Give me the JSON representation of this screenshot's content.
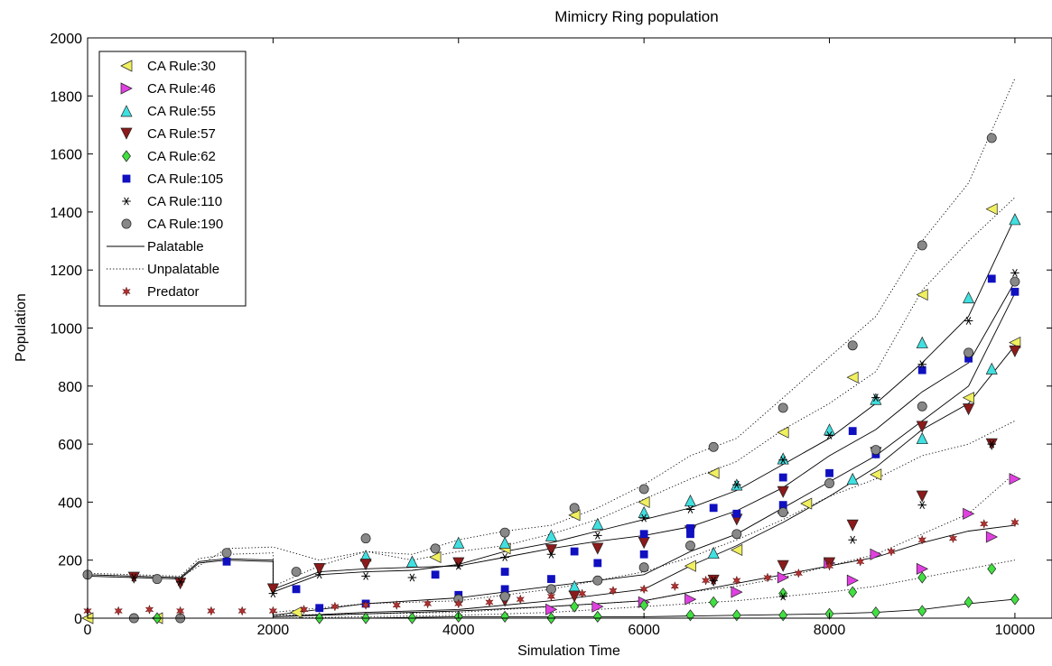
{
  "chart_data": {
    "type": "scatter",
    "title": "Mimicry Ring population",
    "xlabel": "Simulation Time",
    "ylabel": "Population",
    "xlim": [
      0,
      10400
    ],
    "ylim": [
      0,
      2000
    ],
    "xticks": [
      0,
      2000,
      4000,
      6000,
      8000,
      10000
    ],
    "yticks": [
      0,
      200,
      400,
      600,
      800,
      1000,
      1200,
      1400,
      1600,
      1800,
      2000
    ],
    "grid": false,
    "legend_position": "top-left",
    "line_styles": [
      {
        "name": "Palatable",
        "dash": "solid"
      },
      {
        "name": "Unpalatable",
        "dash": "dotted"
      }
    ],
    "series": [
      {
        "name": "CA Rule:30",
        "marker": "triangle-left",
        "color": "#f0f060",
        "x": [
          0,
          750,
          2250,
          3750,
          4500,
          5250,
          6000,
          6500,
          6750,
          7000,
          7500,
          7750,
          8250,
          8500,
          9000,
          9500,
          9750,
          10000
        ],
        "y": [
          0,
          0,
          20,
          210,
          240,
          355,
          400,
          180,
          500,
          235,
          640,
          395,
          830,
          495,
          1115,
          760,
          1410,
          950
        ]
      },
      {
        "name": "CA Rule:46",
        "marker": "triangle-right",
        "color": "#e040e0",
        "x": [
          5000,
          5500,
          6000,
          6500,
          7000,
          7500,
          8000,
          8250,
          8500,
          9000,
          9500,
          9750,
          10000
        ],
        "y": [
          30,
          40,
          55,
          65,
          90,
          140,
          190,
          130,
          220,
          170,
          360,
          280,
          480
        ]
      },
      {
        "name": "CA Rule:55",
        "marker": "triangle-up",
        "color": "#40e0e0",
        "x": [
          3000,
          3500,
          4000,
          4500,
          5000,
          5250,
          5500,
          6000,
          6500,
          6750,
          7000,
          7500,
          7500,
          8000,
          8250,
          8500,
          9000,
          9000,
          9500,
          9750,
          10000
        ],
        "y": [
          215,
          195,
          260,
          260,
          285,
          110,
          325,
          365,
          405,
          225,
          460,
          550,
          380,
          650,
          480,
          755,
          950,
          620,
          1105,
          860,
          1375
        ]
      },
      {
        "name": "CA Rule:57",
        "marker": "triangle-down",
        "color": "#8b1a1a",
        "x": [
          500,
          1000,
          2000,
          2500,
          3000,
          4000,
          4500,
          5000,
          5250,
          5500,
          6000,
          6500,
          6750,
          7000,
          7500,
          7500,
          8000,
          8250,
          8500,
          9000,
          9000,
          9500,
          9750,
          10000
        ],
        "y": [
          140,
          120,
          100,
          170,
          185,
          190,
          60,
          235,
          75,
          240,
          260,
          300,
          130,
          340,
          435,
          180,
          190,
          320,
          570,
          660,
          420,
          720,
          600,
          920
        ]
      },
      {
        "name": "CA Rule:62",
        "marker": "diamond",
        "color": "#40e040",
        "x": [
          750,
          2500,
          3000,
          3500,
          4000,
          4500,
          5000,
          5250,
          5500,
          6000,
          6500,
          6750,
          7000,
          7500,
          7500,
          8000,
          8250,
          8500,
          9000,
          9000,
          9500,
          9750,
          10000
        ],
        "y": [
          0,
          0,
          0,
          0,
          5,
          5,
          0,
          40,
          5,
          45,
          10,
          55,
          10,
          85,
          10,
          15,
          90,
          20,
          140,
          25,
          55,
          170,
          65
        ]
      },
      {
        "name": "CA Rule:105",
        "marker": "square",
        "color": "#1010c0",
        "x": [
          1500,
          2250,
          2500,
          3000,
          3750,
          4000,
          4500,
          4500,
          5000,
          5250,
          5500,
          6000,
          6000,
          6500,
          6500,
          6750,
          7000,
          7500,
          7500,
          8000,
          8250,
          8500,
          9000,
          9500,
          9750,
          10000
        ],
        "y": [
          195,
          100,
          35,
          50,
          150,
          80,
          160,
          100,
          135,
          230,
          190,
          290,
          220,
          290,
          310,
          380,
          360,
          485,
          390,
          500,
          645,
          565,
          855,
          895,
          1170,
          1125
        ]
      },
      {
        "name": "CA Rule:110",
        "marker": "asterisk",
        "color": "#000000",
        "x": [
          500,
          1000,
          2000,
          2500,
          3000,
          3500,
          4000,
          4500,
          5000,
          5500,
          6000,
          6500,
          6750,
          7000,
          7500,
          7500,
          8000,
          8250,
          8500,
          9000,
          9000,
          9500,
          9750,
          10000
        ],
        "y": [
          140,
          125,
          85,
          150,
          145,
          140,
          180,
          210,
          220,
          285,
          345,
          375,
          130,
          460,
          545,
          75,
          630,
          270,
          760,
          875,
          390,
          1025,
          600,
          1190
        ]
      },
      {
        "name": "CA Rule:190",
        "marker": "circle",
        "color": "#888888",
        "x": [
          0,
          500,
          750,
          1000,
          1500,
          2250,
          3000,
          3750,
          4000,
          4500,
          4500,
          5000,
          5250,
          5500,
          6000,
          6000,
          6500,
          6750,
          7000,
          7500,
          7500,
          8000,
          8250,
          8500,
          9000,
          9000,
          9500,
          9750,
          10000
        ],
        "y": [
          150,
          0,
          135,
          0,
          225,
          160,
          275,
          240,
          65,
          295,
          75,
          100,
          380,
          130,
          445,
          175,
          250,
          590,
          290,
          725,
          365,
          465,
          940,
          580,
          1285,
          730,
          915,
          1655,
          1160
        ]
      },
      {
        "name": "Predator",
        "marker": "hexagram",
        "color": "#b03030",
        "x": [
          0,
          333,
          667,
          1000,
          1333,
          1667,
          2000,
          2333,
          2667,
          3000,
          3333,
          3667,
          4000,
          4333,
          4667,
          5000,
          5333,
          5667,
          6000,
          6333,
          6667,
          7000,
          7333,
          7667,
          8000,
          8333,
          8667,
          9000,
          9333,
          9667,
          10000
        ],
        "y": [
          25,
          25,
          30,
          25,
          25,
          25,
          25,
          30,
          40,
          45,
          45,
          50,
          50,
          55,
          65,
          75,
          85,
          95,
          100,
          110,
          130,
          130,
          140,
          155,
          180,
          195,
          230,
          270,
          275,
          325,
          330
        ]
      }
    ],
    "curves": [
      {
        "style": "solid",
        "x": [
          0,
          500,
          1000,
          1200,
          1500,
          2000,
          2000,
          2500,
          3000,
          3500,
          4000,
          4500,
          5000,
          5500,
          6000,
          6500,
          7000,
          7500,
          8000,
          8500,
          9000,
          9500,
          10000
        ],
        "y": [
          150,
          145,
          140,
          195,
          205,
          200,
          100,
          160,
          170,
          175,
          180,
          210,
          240,
          265,
          285,
          315,
          370,
          450,
          560,
          650,
          780,
          880,
          1160
        ]
      },
      {
        "style": "solid",
        "x": [
          0,
          500,
          1000,
          1200,
          1500,
          2000,
          2000,
          2500,
          3000,
          3500,
          4000,
          4500,
          5000,
          5500,
          6000,
          6500,
          7000,
          7500,
          8000,
          8500,
          9000,
          9500,
          10000
        ],
        "y": [
          145,
          140,
          135,
          190,
          200,
          195,
          90,
          150,
          160,
          165,
          185,
          230,
          260,
          300,
          340,
          380,
          440,
          530,
          620,
          740,
          880,
          1040,
          1380
        ]
      },
      {
        "style": "solid",
        "x": [
          2000,
          3000,
          4000,
          5000,
          6000,
          6500,
          7000,
          7500,
          8000,
          8500,
          9000,
          9500,
          10000
        ],
        "y": [
          10,
          50,
          70,
          110,
          150,
          230,
          290,
          380,
          470,
          560,
          680,
          800,
          1120
        ]
      },
      {
        "style": "solid",
        "x": [
          2000,
          3000,
          4000,
          5000,
          6000,
          6500,
          7000,
          7500,
          8000,
          8500,
          9000,
          9500,
          10000
        ],
        "y": [
          5,
          20,
          30,
          60,
          100,
          180,
          250,
          330,
          420,
          520,
          650,
          740,
          940
        ]
      },
      {
        "style": "solid",
        "x": [
          2000,
          3000,
          4000,
          5000,
          6000,
          6500,
          7000,
          7500,
          8000,
          8500,
          9000,
          9500,
          10000
        ],
        "y": [
          5,
          15,
          25,
          40,
          60,
          90,
          120,
          150,
          180,
          210,
          260,
          300,
          320
        ]
      },
      {
        "style": "solid",
        "x": [
          2000,
          3000,
          4000,
          5000,
          6000,
          7000,
          8000,
          8500,
          9000,
          9500,
          10000
        ],
        "y": [
          0,
          0,
          5,
          5,
          5,
          10,
          15,
          20,
          30,
          50,
          65
        ]
      },
      {
        "style": "dotted",
        "x": [
          0,
          500,
          1000,
          1200,
          1500,
          2000,
          2000,
          2500,
          3000,
          3500,
          4000,
          4500,
          5000,
          5500,
          6000,
          6500,
          7000,
          7500,
          8000,
          8500,
          9000,
          9500,
          10000
        ],
        "y": [
          155,
          150,
          145,
          205,
          220,
          225,
          110,
          180,
          230,
          220,
          270,
          300,
          320,
          380,
          460,
          560,
          620,
          760,
          900,
          1040,
          1300,
          1500,
          1860
        ]
      },
      {
        "style": "dotted",
        "x": [
          0,
          500,
          1000,
          1500,
          2000,
          2500,
          3000,
          3500,
          4000,
          4500,
          5000,
          5500,
          6000,
          6500,
          7000,
          7500,
          8000,
          8500,
          9000,
          9500,
          10000
        ],
        "y": [
          150,
          145,
          140,
          240,
          245,
          200,
          230,
          200,
          230,
          250,
          290,
          340,
          410,
          480,
          540,
          650,
          740,
          850,
          1130,
          1300,
          1450
        ]
      },
      {
        "style": "dotted",
        "x": [
          2000,
          3000,
          4000,
          5000,
          6000,
          6500,
          7000,
          7500,
          8000,
          8500,
          9000,
          9500,
          10000
        ],
        "y": [
          20,
          50,
          60,
          100,
          160,
          210,
          270,
          340,
          420,
          480,
          560,
          600,
          680
        ]
      },
      {
        "style": "dotted",
        "x": [
          2000,
          3000,
          4000,
          5000,
          6000,
          6500,
          7000,
          7500,
          8000,
          8500,
          9000,
          9500,
          10000
        ],
        "y": [
          10,
          15,
          20,
          40,
          60,
          90,
          110,
          140,
          180,
          220,
          290,
          360,
          500
        ]
      },
      {
        "style": "dotted",
        "x": [
          2000,
          3000,
          4000,
          5000,
          6000,
          7000,
          8000,
          8500,
          9000,
          9500,
          10000
        ],
        "y": [
          0,
          5,
          10,
          20,
          40,
          60,
          90,
          110,
          140,
          170,
          200
        ]
      }
    ]
  }
}
